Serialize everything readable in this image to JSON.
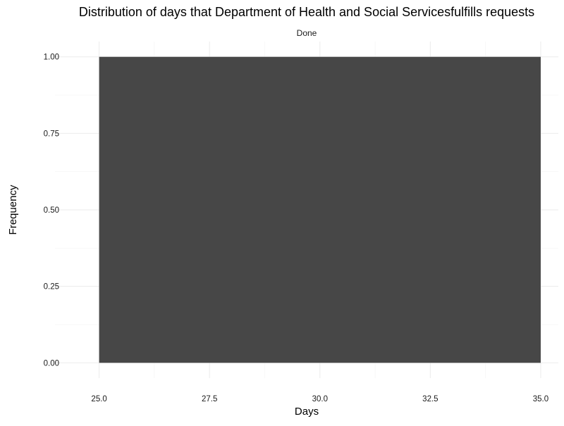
{
  "chart_data": {
    "type": "bar",
    "title": "Distribution of days that Department of Health and Social Servicesfulfills requests",
    "facet_label": "Done",
    "xlabel": "Days",
    "ylabel": "Frequency",
    "xlim": [
      24.0,
      35.4
    ],
    "ylim": [
      -0.05,
      1.05
    ],
    "x_ticks": [
      25.0,
      27.5,
      30.0,
      32.5,
      35.0
    ],
    "x_tick_labels": [
      "25.0",
      "27.5",
      "30.0",
      "32.5",
      "35.0"
    ],
    "y_ticks": [
      0.0,
      0.25,
      0.5,
      0.75,
      1.0
    ],
    "y_tick_labels": [
      "0.00",
      "0.25",
      "0.50",
      "0.75",
      "1.00"
    ],
    "bins": [
      {
        "x_start": 25.0,
        "x_end": 35.0,
        "value": 1.0
      }
    ],
    "grid": true,
    "bar_color": "#474747",
    "grid_major_color": "#ebebeb",
    "grid_minor_color": "#f4f4f4",
    "text_color": "#000000",
    "tick_text_color": "#1a1a1a"
  }
}
